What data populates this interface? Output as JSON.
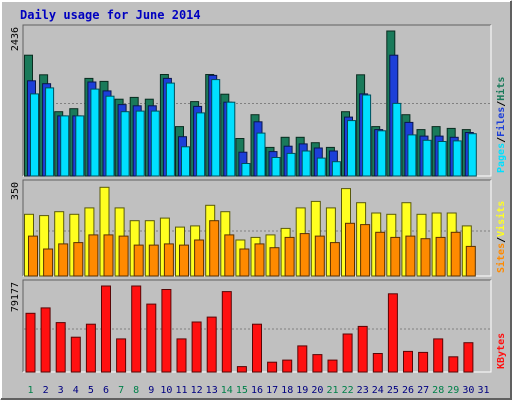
{
  "colors": {
    "background": "#c0c0c0",
    "panel": "#c0c0c0",
    "title": "#0000c0",
    "hits": "#1a7a5a",
    "files": "#1c3fd8",
    "pages": "#00e0ff",
    "visits": "#ffff20",
    "sites": "#ff8a00",
    "kbytes": "#ff1010",
    "weekend_day": "#00804a",
    "weekday": "#000080"
  },
  "chart_data": {
    "type": "bar",
    "title": "Daily usage for June 2014",
    "days": [
      "1",
      "2",
      "3",
      "4",
      "5",
      "6",
      "7",
      "8",
      "9",
      "10",
      "11",
      "12",
      "13",
      "14",
      "15",
      "16",
      "17",
      "18",
      "19",
      "20",
      "21",
      "22",
      "23",
      "24",
      "25",
      "26",
      "27",
      "28",
      "29",
      "30",
      "31"
    ],
    "weekend_days": [
      "1",
      "7",
      "8",
      "14",
      "15",
      "21",
      "22",
      "28",
      "29"
    ],
    "panels": [
      {
        "id": "hits-files-pages",
        "max_label": "2436",
        "ylim": [
          0,
          2436
        ],
        "legend": [
          {
            "label": "Pages",
            "color": "pages"
          },
          {
            "label": "/",
            "color": "legend_slash"
          },
          {
            "label": "Files",
            "color": "files"
          },
          {
            "label": "/",
            "color": "legend_slash"
          },
          {
            "label": "Hits",
            "color": "hits"
          }
        ],
        "series": [
          {
            "name": "Hits",
            "color": "hits",
            "values": [
              2030,
              1700,
              1080,
              1130,
              1640,
              1590,
              1290,
              1320,
              1290,
              1705,
              830,
              1250,
              1705,
              1375,
              630,
              1030,
              480,
              650,
              650,
              560,
              480,
              1080,
              1700,
              830,
              2436,
              1030,
              780,
              830,
              800,
              780,
              null
            ]
          },
          {
            "name": "Files",
            "color": "files",
            "values": [
              1600,
              1550,
              1010,
              1010,
              1580,
              1430,
              1200,
              1180,
              1180,
              1640,
              660,
              1170,
              1690,
              1240,
              400,
              910,
              410,
              500,
              540,
              470,
              420,
              990,
              1380,
              780,
              2030,
              900,
              670,
              670,
              650,
              730,
              null
            ]
          },
          {
            "name": "Pages",
            "color": "pages",
            "values": [
              1380,
              1480,
              1010,
              1010,
              1460,
              1340,
              1080,
              1090,
              1090,
              1560,
              490,
              1060,
              1620,
              1240,
              210,
              720,
              310,
              380,
              420,
              300,
              240,
              930,
              1360,
              760,
              1220,
              690,
              600,
              580,
              590,
              710,
              null
            ]
          }
        ]
      },
      {
        "id": "visits-sites",
        "max_label": "350",
        "ylim": [
          0,
          350
        ],
        "legend": [
          {
            "label": "Sites",
            "color": "sites"
          },
          {
            "label": "/",
            "color": "legend_slash"
          },
          {
            "label": "Visits",
            "color": "visits"
          }
        ],
        "series": [
          {
            "name": "Visits",
            "color": "visits",
            "values": [
              240,
              235,
              250,
              240,
              265,
              345,
              265,
              215,
              215,
              225,
              190,
              195,
              275,
              250,
              140,
              150,
              160,
              185,
              265,
              290,
              265,
              340,
              285,
              245,
              240,
              285,
              240,
              245,
              245,
              195,
              null
            ]
          },
          {
            "name": "Sites",
            "color": "sites",
            "values": [
              155,
              105,
              125,
              130,
              160,
              160,
              155,
              120,
              120,
              125,
              120,
              140,
              215,
              160,
              105,
              125,
              110,
              150,
              165,
              155,
              130,
              205,
              200,
              170,
              150,
              155,
              145,
              150,
              170,
              115,
              null
            ]
          }
        ]
      },
      {
        "id": "kbytes",
        "max_label": "79177",
        "ylim": [
          0,
          79177
        ],
        "legend": [
          {
            "label": "KBytes",
            "color": "kbytes"
          }
        ],
        "series": [
          {
            "name": "KBytes",
            "color": "kbytes",
            "values": [
              54000,
              59000,
              45500,
              32000,
              44000,
              79177,
              30500,
              79177,
              62500,
              76000,
              30500,
              46000,
              50500,
              74000,
              5000,
              44000,
              9000,
              11000,
              24000,
              16000,
              11000,
              35000,
              42000,
              17000,
              72000,
              19000,
              18000,
              30500,
              14000,
              27000,
              null
            ]
          }
        ]
      }
    ]
  }
}
